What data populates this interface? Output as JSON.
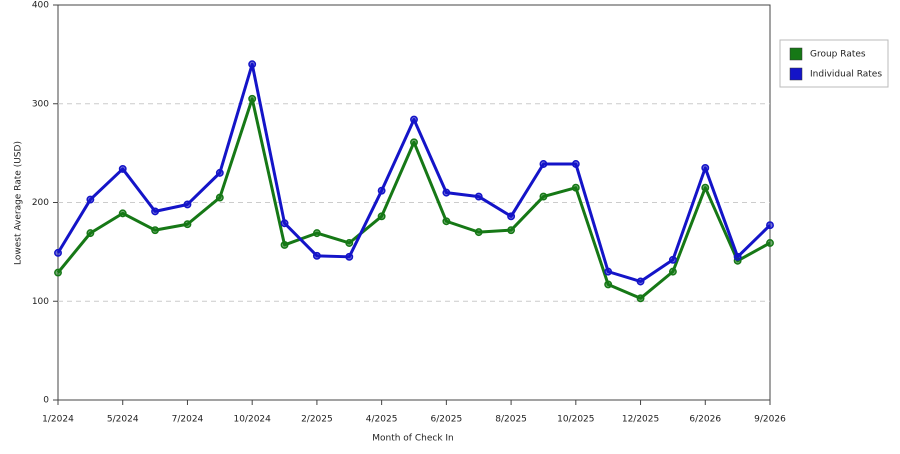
{
  "chart_data": {
    "type": "line",
    "x_label": "Month of Check In",
    "y_label": "Lowest Average Rate (USD)",
    "categories": [
      "1/2024",
      null,
      "5/2024",
      null,
      "7/2024",
      null,
      "10/2024",
      null,
      "2/2025",
      null,
      "4/2025",
      null,
      "6/2025",
      null,
      "8/2025",
      null,
      "10/2025",
      null,
      "12/2025",
      null,
      "6/2026",
      null,
      "9/2026"
    ],
    "series": [
      {
        "name": "Group Rates",
        "color": "#167816",
        "values": [
          129,
          169,
          189,
          172,
          178,
          205,
          305,
          157,
          169,
          159,
          186,
          261,
          181,
          170,
          172,
          206,
          215,
          117,
          103,
          130,
          215,
          141,
          159
        ]
      },
      {
        "name": "Individual Rates",
        "color": "#1414c8",
        "values": [
          149,
          203,
          234,
          191,
          198,
          230,
          340,
          179,
          146,
          145,
          212,
          284,
          210,
          206,
          186,
          239,
          239,
          130,
          120,
          142,
          235,
          145,
          177
        ]
      }
    ],
    "ylim": [
      0,
      400
    ],
    "yticks": [
      0,
      100,
      200,
      300,
      400
    ],
    "grid": true,
    "legend": "right"
  }
}
